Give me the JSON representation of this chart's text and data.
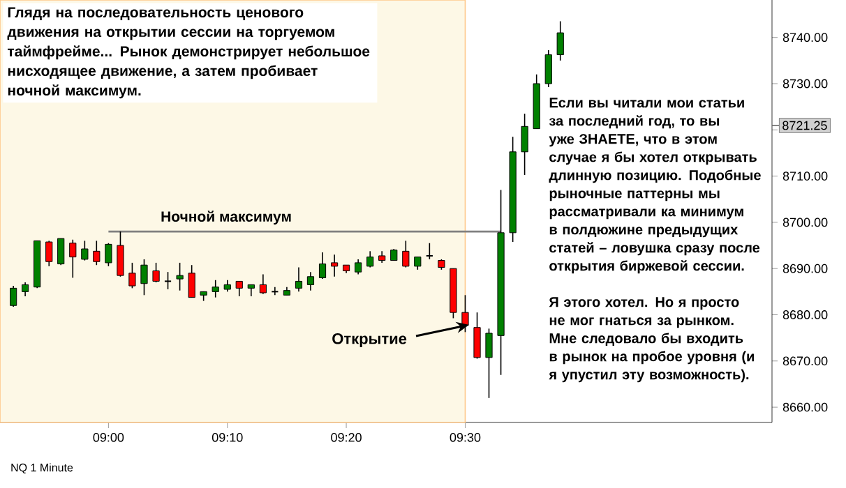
{
  "chart_data": {
    "type": "candlestick",
    "x": [
      8.8667,
      8.8833,
      8.9,
      8.9167,
      8.9333,
      8.95,
      8.9667,
      8.9833,
      9.0,
      9.0167,
      9.0333,
      9.05,
      9.0667,
      9.0833,
      9.1,
      9.1167,
      9.1333,
      9.15,
      9.1667,
      9.1833,
      9.2,
      9.2167,
      9.2333,
      9.25,
      9.2667,
      9.2833,
      9.3,
      9.3167,
      9.3333,
      9.35,
      9.3667,
      9.3833,
      9.4,
      9.4167,
      9.4333,
      9.45,
      9.4667,
      9.4833,
      9.5,
      9.5167,
      9.5333,
      9.55,
      9.5667,
      9.5833,
      9.6,
      9.6167,
      9.6333
    ],
    "ohlc": [
      [
        8682,
        8686.25,
        8681.75,
        8685.75
      ],
      [
        8685,
        8687,
        8684,
        8686.5
      ],
      [
        8686,
        8696,
        8685.75,
        8696
      ],
      [
        8695.75,
        8696,
        8690.5,
        8691.5
      ],
      [
        8691,
        8696.5,
        8690.75,
        8696.5
      ],
      [
        8695.5,
        8696.25,
        8688,
        8692.5
      ],
      [
        8692,
        8696,
        8691.75,
        8694.25
      ],
      [
        8693.75,
        8696,
        8690.75,
        8691.5
      ],
      [
        8691.25,
        8695.5,
        8690.5,
        8695.25
      ],
      [
        8695,
        8698,
        8688.25,
        8688.5
      ],
      [
        8689,
        8691.25,
        8685.75,
        8686.25
      ],
      [
        8686.75,
        8692,
        8684.25,
        8690.75
      ],
      [
        8689.5,
        8691.25,
        8687,
        8687.25
      ],
      [
        8687.25,
        8689.25,
        8685.5,
        8687.25
      ],
      [
        8687.75,
        8691.25,
        8685.25,
        8688.5
      ],
      [
        8689,
        8690.75,
        8683.75,
        8683.75
      ],
      [
        8684.25,
        8685,
        8683,
        8685
      ],
      [
        8685,
        8687.5,
        8683.75,
        8686
      ],
      [
        8685.5,
        8687.5,
        8685,
        8686.5
      ],
      [
        8687.25,
        8687.25,
        8684,
        8685.75
      ],
      [
        8685.75,
        8686.5,
        8684,
        8686.5
      ],
      [
        8686.5,
        8688.75,
        8684.5,
        8684.75
      ],
      [
        8685,
        8686,
        8684.25,
        8685
      ],
      [
        8684.25,
        8686,
        8684.25,
        8685.25
      ],
      [
        8685.75,
        8690.25,
        8685,
        8687.25
      ],
      [
        8686.5,
        8689.25,
        8685.25,
        8688.25
      ],
      [
        8688,
        8693.5,
        8687.75,
        8691
      ],
      [
        8691.25,
        8693,
        8688.25,
        8690.5
      ],
      [
        8690.75,
        8690.75,
        8689,
        8689.5
      ],
      [
        8689.25,
        8692,
        8688.75,
        8691.25
      ],
      [
        8690.5,
        8693.75,
        8690.25,
        8692.5
      ],
      [
        8692.75,
        8693.75,
        8691.25,
        8691.75
      ],
      [
        8691.75,
        8694.25,
        8691.75,
        8694
      ],
      [
        8693.75,
        8696,
        8690.25,
        8690.5
      ],
      [
        8690.5,
        8692.5,
        8689.75,
        8692.5
      ],
      [
        8692.75,
        8695.5,
        8692,
        8692.75
      ],
      [
        8691.75,
        8692,
        8689.75,
        8690.25
      ],
      [
        8690,
        8690,
        8679.25,
        8680.5
      ],
      [
        8680.5,
        8684.25,
        8676.25,
        8677.75
      ],
      [
        8677.25,
        8680.5,
        8670.5,
        8670.75
      ],
      [
        8670.75,
        8677,
        8662,
        8676
      ],
      [
        8675.5,
        8707,
        8667,
        8697.75
      ],
      [
        8697.75,
        8718.5,
        8695.75,
        8715.25
      ],
      [
        8715.25,
        8723.5,
        8710.25,
        8720.75
      ],
      [
        8720.25,
        8732,
        8720.25,
        8730
      ],
      [
        8730,
        8737.25,
        8729.25,
        8736.25
      ],
      [
        8736.25,
        8743.5,
        8735,
        8741
      ]
    ],
    "colors": [
      "#008000",
      "#008000",
      "#008000",
      "#ff0000",
      "#008000",
      "#ff0000",
      "#008000",
      "#ff0000",
      "#008000",
      "#ff0000",
      "#ff0000",
      "#008000",
      "#ff0000",
      "#000000",
      "#008000",
      "#ff0000",
      "#008000",
      "#008000",
      "#008000",
      "#ff0000",
      "#008000",
      "#ff0000",
      "#000000",
      "#008000",
      "#008000",
      "#008000",
      "#008000",
      "#ff0000",
      "#ff0000",
      "#008000",
      "#008000",
      "#ff0000",
      "#008000",
      "#ff0000",
      "#008000",
      "#000000",
      "#ff0000",
      "#ff0000",
      "#ff0000",
      "#ff0000",
      "#008000",
      "#008000",
      "#008000",
      "#008000",
      "#008000",
      "#008000",
      "#008000"
    ],
    "xlim": [
      8.848,
      9.93
    ],
    "xticks": [
      {
        "value": 9.0,
        "label": "09:00"
      },
      {
        "value": 9.1667,
        "label": "09:10"
      },
      {
        "value": 9.3333,
        "label": "09:20"
      },
      {
        "value": 9.5,
        "label": "09:30"
      }
    ],
    "ylim": [
      8656.7,
      8748.1
    ],
    "yticks": [
      {
        "value": 8660,
        "label": "8660.00"
      },
      {
        "value": 8670,
        "label": "8670.00"
      },
      {
        "value": 8680,
        "label": "8680.00"
      },
      {
        "value": 8690,
        "label": "8690.00"
      },
      {
        "value": 8700,
        "label": "8700.00"
      },
      {
        "value": 8710,
        "label": "8710.00"
      },
      {
        "value": 8720,
        "label": null
      },
      {
        "value": 8730,
        "label": "8730.00"
      },
      {
        "value": 8740,
        "label": "8740.00"
      }
    ],
    "bands": [
      {
        "axis": "x",
        "from": 8.848,
        "to": 9.5,
        "color": "#fdf8e6"
      }
    ],
    "ref_lines": [
      {
        "axis": "y",
        "value": 8698,
        "label": "Ночной максимум",
        "color": "#808080",
        "line_style": "solid"
      }
    ],
    "annotations": [
      "Глядя на последовательность ценового движения на открытии сессии на торгуемом таймфрейме... Рынок демонстрирует небольшое нисходящее движение, а затем пробивает ночной максимум.",
      "Если вы читали мои статьи за последний год, то вы уже ЗНАЕТЕ, что в этом случае я бы хотел открывать длинную позицию. Подобные рыночные паттерны мы рассматривали ка минимум в полдюжине предыдущих статей – ловушка сразу после открытия биржевой сессии.",
      "Я этого хотел. Но я просто не мог гнаться за рынком. Мне следовало бы входить в рынок на пробое уровня (и я упустил эту возможность).",
      "NQ 1 Minute",
      "Открытие",
      "8721.25"
    ]
  }
}
